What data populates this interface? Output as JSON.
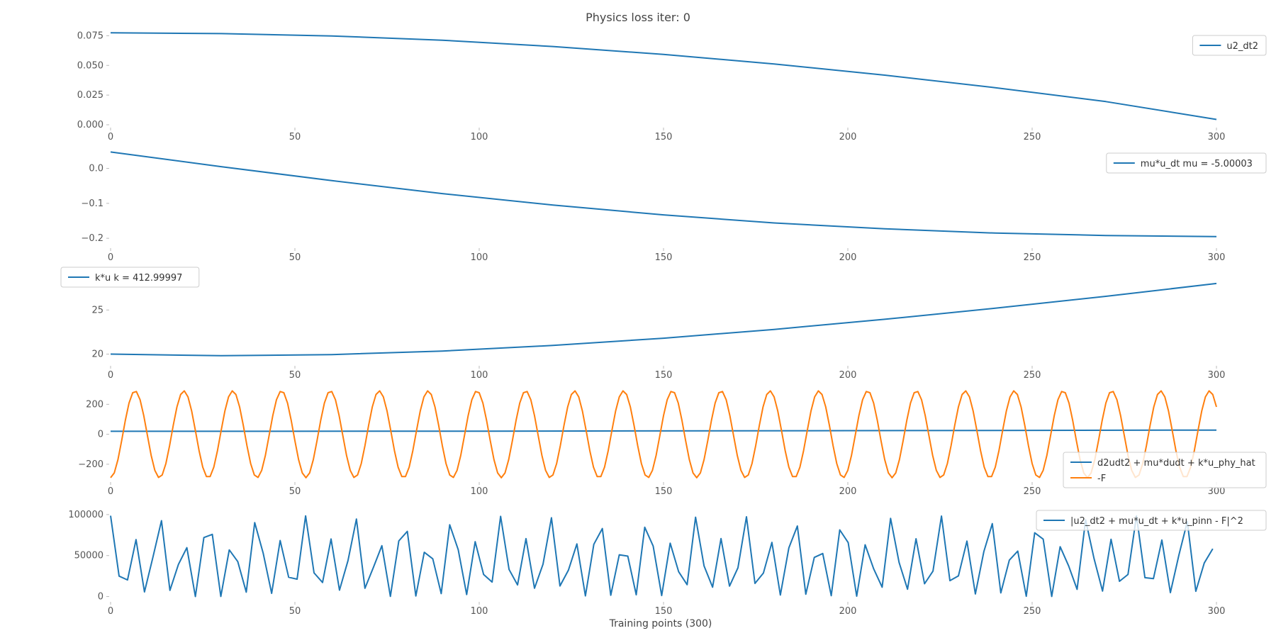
{
  "title": "Physics loss iter: 0",
  "xlabel": "Training points (300)",
  "colors": {
    "blue": "#1f77b4",
    "orange": "#ff7f0e"
  },
  "chart_data": [
    {
      "type": "line",
      "xlim": [
        0,
        300
      ],
      "ylim": [
        0.0,
        0.08
      ],
      "xticks": [
        0,
        50,
        100,
        150,
        200,
        250,
        300
      ],
      "yticks": [
        0.0,
        0.025,
        0.05,
        0.075
      ],
      "ytick_labels": [
        "0.000",
        "0.025",
        "0.050",
        "0.075"
      ],
      "legend_position": "top-right",
      "series": [
        {
          "name": "u2_dt2",
          "color": "#1f77b4",
          "kind": "poly",
          "x": [
            0,
            30,
            60,
            90,
            120,
            150,
            180,
            210,
            240,
            270,
            300
          ],
          "values": [
            0.0775,
            0.0768,
            0.0748,
            0.0712,
            0.0659,
            0.0592,
            0.0512,
            0.0418,
            0.0312,
            0.0195,
            0.0045
          ]
        }
      ]
    },
    {
      "type": "line",
      "xlim": [
        0,
        300
      ],
      "ylim": [
        -0.22,
        0.06
      ],
      "xticks": [
        0,
        50,
        100,
        150,
        200,
        250,
        300
      ],
      "yticks": [
        -0.2,
        -0.1,
        0.0
      ],
      "ytick_labels": [
        "−0.2",
        "−0.1",
        "0.0"
      ],
      "legend_position": "top-right",
      "series": [
        {
          "name": "mu*u_dt  mu = -5.00003",
          "color": "#1f77b4",
          "kind": "poly",
          "x": [
            0,
            30,
            60,
            90,
            120,
            150,
            180,
            210,
            240,
            270,
            300
          ],
          "values": [
            0.047,
            0.005,
            -0.035,
            -0.072,
            -0.105,
            -0.133,
            -0.156,
            -0.173,
            -0.185,
            -0.192,
            -0.195
          ]
        }
      ]
    },
    {
      "type": "line",
      "xlim": [
        0,
        300
      ],
      "ylim": [
        19.0,
        30.0
      ],
      "xticks": [
        0,
        50,
        100,
        150,
        200,
        250,
        300
      ],
      "yticks": [
        20,
        25
      ],
      "ytick_labels": [
        "20",
        "25"
      ],
      "legend_position": "top-left",
      "series": [
        {
          "name": "k*u  k = 412.99997",
          "color": "#1f77b4",
          "kind": "poly",
          "x": [
            0,
            30,
            60,
            90,
            120,
            150,
            180,
            210,
            240,
            270,
            300
          ],
          "values": [
            20.0,
            19.82,
            19.95,
            20.35,
            20.98,
            21.8,
            22.8,
            23.95,
            25.2,
            26.55,
            28.0
          ]
        }
      ]
    },
    {
      "type": "line",
      "xlim": [
        0,
        300
      ],
      "ylim": [
        -300,
        320
      ],
      "xticks": [
        0,
        50,
        100,
        150,
        200,
        250,
        300
      ],
      "yticks": [
        -200,
        0,
        200
      ],
      "ytick_labels": [
        "−200",
        "0",
        "200"
      ],
      "legend_position": "bottom-right",
      "series": [
        {
          "name": "d2udt2 + mu*dudt + k*u_phy_hat",
          "color": "#1f77b4",
          "kind": "poly",
          "x": [
            0,
            100,
            200,
            300
          ],
          "values": [
            20,
            21,
            24,
            28
          ]
        },
        {
          "name": "-F",
          "color": "#ff7f0e",
          "kind": "sine",
          "amplitude": 290,
          "period": 13.25,
          "phase": 3.1416,
          "n": 300
        }
      ]
    },
    {
      "type": "line",
      "xlim": [
        0,
        300
      ],
      "ylim": [
        -3000,
        112000
      ],
      "xticks": [
        0,
        50,
        100,
        150,
        200,
        250,
        300
      ],
      "yticks": [
        0,
        50000,
        100000
      ],
      "ytick_labels": [
        "0",
        "50000",
        "100000"
      ],
      "legend_position": "top-right",
      "series": [
        {
          "name": "|u2_dt2 + mu*u_dt + k*u_pinn - F|^2",
          "color": "#1f77b4",
          "kind": "sq",
          "amplitude": 290,
          "offset": 24,
          "period": 13.25,
          "phase": 3.1416,
          "x_step": 2.3,
          "n": 131
        }
      ]
    }
  ]
}
